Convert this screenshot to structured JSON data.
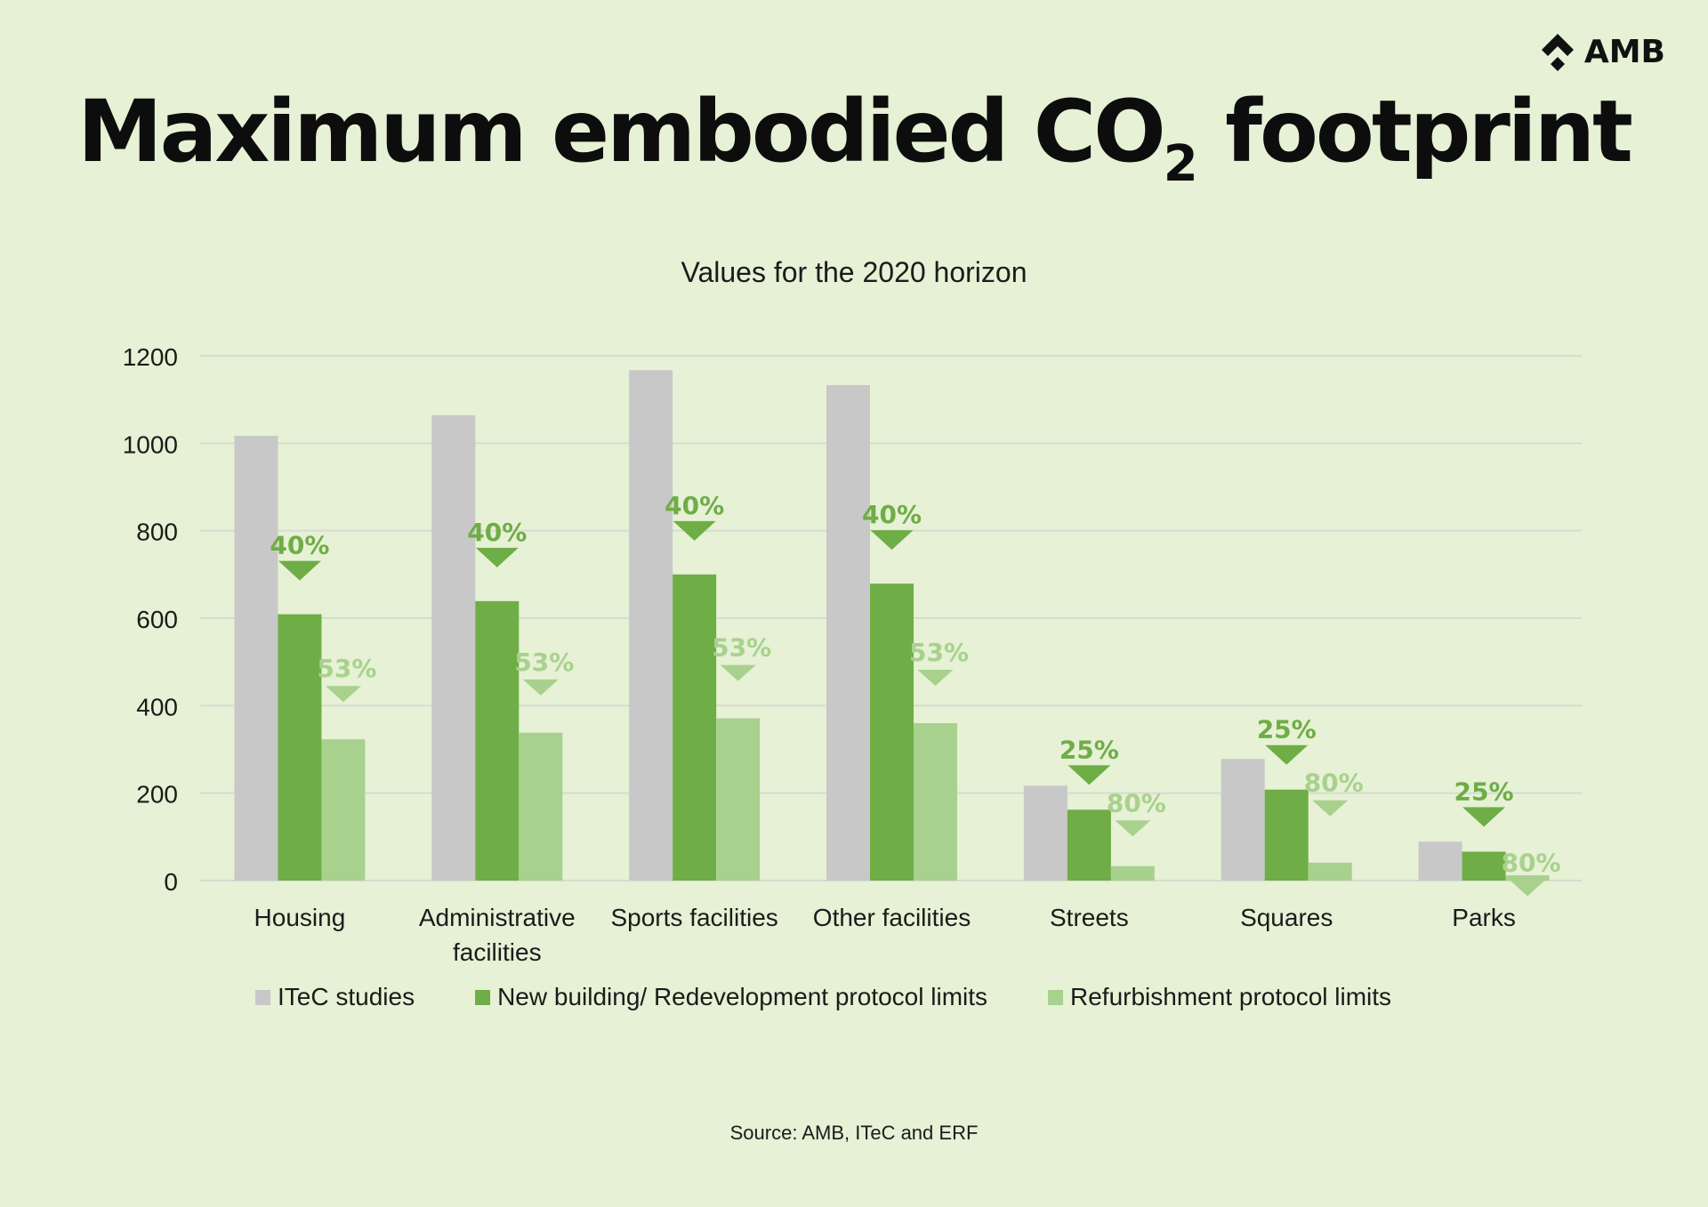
{
  "logo": {
    "text": "AMB",
    "icon": "amb-diamond-logo-icon"
  },
  "header": {
    "title_main": "Maximum embodied CO",
    "title_sub": "2",
    "title_end": " footprint",
    "subtitle": "Values for the 2020 horizon"
  },
  "footer": {
    "source": "Source: AMB, ITeC and ERF"
  },
  "colors": {
    "background": "#e6f1d5",
    "itec": "#c8c8c8",
    "new_building": "#6fad46",
    "refurbishment": "#a9d18e",
    "gridline": "#d6dcd0"
  },
  "chart_data": {
    "type": "bar",
    "title": "Maximum embodied CO2 footprint",
    "subtitle": "Values for the 2020 horizon",
    "xlabel": "",
    "ylabel": "",
    "ylim": [
      0,
      1200
    ],
    "yticks": [
      0,
      200,
      400,
      600,
      800,
      1000,
      1200
    ],
    "grid": true,
    "legend_position": "bottom",
    "categories": [
      [
        "Housing"
      ],
      [
        "Administrative",
        "facilities"
      ],
      [
        "Sports facilities"
      ],
      [
        "Other facilities"
      ],
      [
        "Streets"
      ],
      [
        "Squares"
      ],
      [
        "Parks"
      ]
    ],
    "series": [
      {
        "name": "ITeC studies",
        "color": "#c8c8c8",
        "values": [
          1017,
          1064,
          1167,
          1133,
          217,
          278,
          89
        ]
      },
      {
        "name": "New building/ Redevelopment protocol limits",
        "color": "#6fad46",
        "values": [
          609,
          639,
          700,
          679,
          162,
          208,
          66
        ]
      },
      {
        "name": "Refurbishment protocol limits",
        "color": "#a9d18e",
        "values": [
          323,
          338,
          371,
          360,
          33,
          41,
          12
        ]
      }
    ],
    "annotations": {
      "new_building_reduction": [
        "40%",
        "40%",
        "40%",
        "40%",
        "25%",
        "25%",
        "25%"
      ],
      "refurbishment_reduction": [
        "53%",
        "53%",
        "53%",
        "53%",
        "80%",
        "80%",
        "80%"
      ]
    }
  }
}
